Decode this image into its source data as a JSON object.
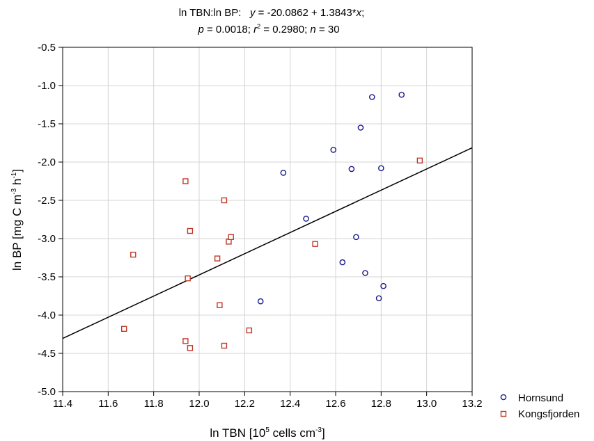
{
  "chart_data": {
    "type": "scatter",
    "title_line1": {
      "prefix": "ln TBN:ln BP:",
      "y": "y",
      "eq_mid": " = -20.0862 + 1.3843*",
      "x": "x",
      "end": ";"
    },
    "title_line2": {
      "p": "p",
      "p_val": " = 0.0018; ",
      "r": "r",
      "r_sup": "2",
      "r_val": " = 0.2980; ",
      "n": "n",
      "n_val": " = 30"
    },
    "xlabel": {
      "main": "ln TBN [10",
      "sup1": "5",
      "mid": " cells cm",
      "sup2": "-3",
      "end": "]"
    },
    "ylabel": {
      "main": "ln BP [mg C m",
      "sup1": "-3",
      "mid": " h",
      "sup2": "-1",
      "end": "]"
    },
    "xlim": [
      11.4,
      13.2
    ],
    "ylim": [
      -5.0,
      -0.5
    ],
    "x_ticks": [
      "11.4",
      "11.6",
      "11.8",
      "12.0",
      "12.2",
      "12.4",
      "12.6",
      "12.8",
      "13.0",
      "13.2"
    ],
    "y_ticks": [
      "-0.5",
      "-1.0",
      "-1.5",
      "-2.0",
      "-2.5",
      "-3.0",
      "-3.5",
      "-4.0",
      "-4.5",
      "-5.0"
    ],
    "grid": true,
    "legend_position": "bottom-right, outside plot",
    "regression": {
      "intercept": -20.0862,
      "slope": 1.3843
    },
    "series": [
      {
        "name": "Hornsund",
        "marker": "circle",
        "color": "#1a1a8c",
        "points": [
          [
            12.27,
            -3.82
          ],
          [
            12.37,
            -2.14
          ],
          [
            12.47,
            -2.74
          ],
          [
            12.59,
            -1.84
          ],
          [
            12.63,
            -3.31
          ],
          [
            12.67,
            -2.09
          ],
          [
            12.69,
            -2.98
          ],
          [
            12.71,
            -1.55
          ],
          [
            12.73,
            -3.45
          ],
          [
            12.76,
            -1.15
          ],
          [
            12.79,
            -3.78
          ],
          [
            12.8,
            -2.08
          ],
          [
            12.81,
            -3.62
          ],
          [
            12.89,
            -1.12
          ]
        ]
      },
      {
        "name": "Kongsfjorden",
        "marker": "square",
        "color": "#c0392b",
        "points": [
          [
            11.67,
            -4.18
          ],
          [
            11.71,
            -3.21
          ],
          [
            11.94,
            -2.25
          ],
          [
            11.94,
            -4.34
          ],
          [
            11.95,
            -3.52
          ],
          [
            11.96,
            -2.9
          ],
          [
            11.96,
            -4.43
          ],
          [
            12.08,
            -3.26
          ],
          [
            12.09,
            -3.87
          ],
          [
            12.11,
            -2.5
          ],
          [
            12.11,
            -4.4
          ],
          [
            12.13,
            -3.04
          ],
          [
            12.14,
            -2.98
          ],
          [
            12.22,
            -4.2
          ],
          [
            12.51,
            -3.07
          ],
          [
            12.97,
            -1.98
          ]
        ]
      }
    ]
  }
}
